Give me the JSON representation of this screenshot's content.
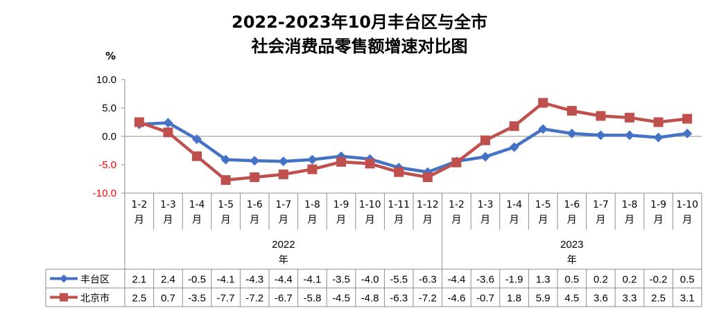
{
  "chart_data": {
    "type": "line",
    "title_line1": "2022-2023年10月丰台区与全市",
    "title_line2": "社会消费品零售额增速对比图",
    "ylabel": "%",
    "ylim": [
      -10,
      10
    ],
    "y_ticks": [
      "10.0",
      "5.0",
      "0.0",
      "-5.0",
      "-10.0"
    ],
    "categories": [
      "1-2月",
      "1-3月",
      "1-4月",
      "1-5月",
      "1-6月",
      "1-7月",
      "1-8月",
      "1-9月",
      "1-10月",
      "1-11月",
      "1-12月",
      "1-2月",
      "1-3月",
      "1-4月",
      "1-5月",
      "1-6月",
      "1-7月",
      "1-8月",
      "1-9月",
      "1-10月"
    ],
    "category_lines": [
      [
        "1-2",
        "月"
      ],
      [
        "1-3",
        "月"
      ],
      [
        "1-4",
        "月"
      ],
      [
        "1-5",
        "月"
      ],
      [
        "1-6",
        "月"
      ],
      [
        "1-7",
        "月"
      ],
      [
        "1-8",
        "月"
      ],
      [
        "1-9",
        "月"
      ],
      [
        "1-10",
        "月"
      ],
      [
        "1-11",
        "月"
      ],
      [
        "1-12",
        "月"
      ],
      [
        "1-2",
        "月"
      ],
      [
        "1-3",
        "月"
      ],
      [
        "1-4",
        "月"
      ],
      [
        "1-5",
        "月"
      ],
      [
        "1-6",
        "月"
      ],
      [
        "1-7",
        "月"
      ],
      [
        "1-8",
        "月"
      ],
      [
        "1-9",
        "月"
      ],
      [
        "1-10",
        "月"
      ]
    ],
    "year_groups": [
      {
        "year": "2022",
        "suffix": "年",
        "count": 11
      },
      {
        "year": "2023",
        "suffix": "年",
        "count": 9
      }
    ],
    "series": [
      {
        "name": "丰台区",
        "color": "#4472C4",
        "marker": "diamond",
        "values": [
          2.1,
          2.4,
          -0.5,
          -4.1,
          -4.3,
          -4.4,
          -4.1,
          -3.5,
          -4.0,
          -5.5,
          -6.3,
          -4.4,
          -3.6,
          -1.9,
          1.3,
          0.5,
          0.2,
          0.2,
          -0.2,
          0.5
        ],
        "labels": [
          "2.1",
          "2.4",
          "-0.5",
          "-4.1",
          "-4.3",
          "-4.4",
          "-4.1",
          "-3.5",
          "-4.0",
          "-5.5",
          "-6.3",
          "-4.4",
          "-3.6",
          "-1.9",
          "1.3",
          "0.5",
          "0.2",
          "0.2",
          "-0.2",
          "0.5"
        ]
      },
      {
        "name": "北京市",
        "color": "#C0504D",
        "marker": "square",
        "values": [
          2.5,
          0.7,
          -3.5,
          -7.7,
          -7.2,
          -6.7,
          -5.8,
          -4.5,
          -4.8,
          -6.3,
          -7.2,
          -4.6,
          -0.7,
          1.8,
          5.9,
          4.5,
          3.6,
          3.3,
          2.5,
          3.1
        ],
        "labels": [
          "2.5",
          "0.7",
          "-3.5",
          "-7.7",
          "-7.2",
          "-6.7",
          "-5.8",
          "-4.5",
          "-4.8",
          "-6.3",
          "-7.2",
          "-4.6",
          "-0.7",
          "1.8",
          "5.9",
          "4.5",
          "3.6",
          "3.3",
          "2.5",
          "3.1"
        ]
      }
    ],
    "negative_tick_color": "#FF0000",
    "grid": false,
    "legend": "data-table"
  }
}
